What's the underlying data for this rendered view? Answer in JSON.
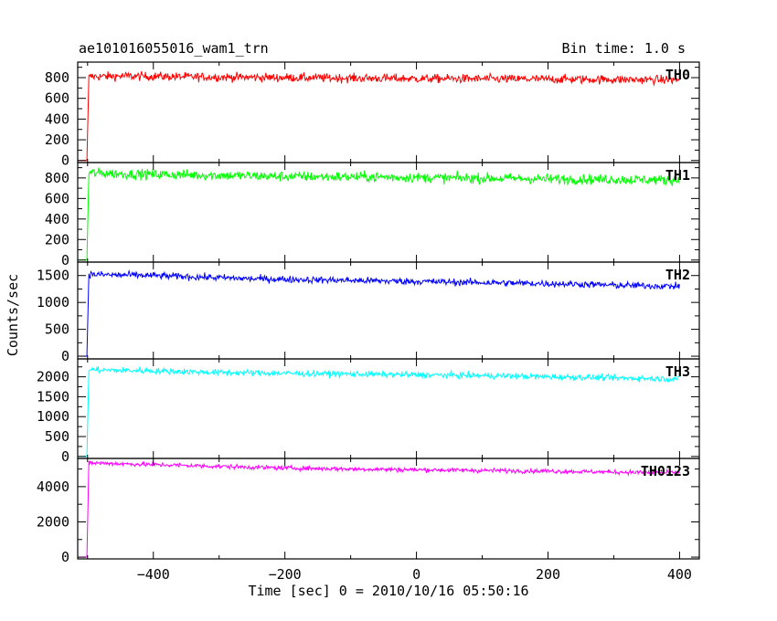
{
  "header": {
    "title": "ae101016055016_wam1_trn",
    "bin_time": "Bin time: 1.0 s"
  },
  "chart_data": {
    "type": "line",
    "title": "ae101016055016_wam1_trn",
    "subtitle": "Bin time: 1.0 s",
    "xlabel": "Time [sec] 0 = 2010/10/16 05:50:16",
    "ylabel": "Counts/sec",
    "xlim": [
      -515,
      430
    ],
    "xticks": [
      -400,
      -200,
      0,
      200,
      400
    ],
    "grid": false,
    "panels": [
      {
        "name": "TH0",
        "color": "#ff0000",
        "ylim": [
          -20,
          950
        ],
        "yticks": [
          0,
          200,
          400,
          600,
          800
        ],
        "x": [
          -515,
          -501,
          -498,
          -495,
          -450,
          -400,
          -350,
          -300,
          -250,
          -200,
          -150,
          -100,
          -50,
          0,
          50,
          100,
          150,
          200,
          250,
          300,
          350,
          400
        ],
        "y": [
          0,
          0,
          800,
          810,
          815,
          812,
          808,
          805,
          803,
          800,
          798,
          795,
          793,
          790,
          790,
          788,
          787,
          785,
          784,
          782,
          780,
          778
        ],
        "noise": 30
      },
      {
        "name": "TH1",
        "color": "#00ff00",
        "ylim": [
          -20,
          950
        ],
        "yticks": [
          0,
          200,
          400,
          600,
          800
        ],
        "x": [
          -515,
          -501,
          -498,
          -495,
          -450,
          -400,
          -350,
          -300,
          -250,
          -200,
          -150,
          -100,
          -50,
          0,
          50,
          100,
          150,
          200,
          250,
          300,
          350,
          400
        ],
        "y": [
          0,
          0,
          850,
          850,
          840,
          835,
          830,
          825,
          820,
          815,
          812,
          810,
          808,
          805,
          800,
          798,
          795,
          790,
          787,
          785,
          782,
          780
        ],
        "noise": 35
      },
      {
        "name": "TH2",
        "color": "#0000ff",
        "ylim": [
          -50,
          1750
        ],
        "yticks": [
          0,
          500,
          1000,
          1500
        ],
        "x": [
          -515,
          -501,
          -498,
          -495,
          -450,
          -400,
          -350,
          -300,
          -250,
          -200,
          -150,
          -100,
          -50,
          0,
          50,
          100,
          150,
          200,
          250,
          300,
          350,
          400
        ],
        "y": [
          0,
          0,
          1520,
          1520,
          1510,
          1500,
          1480,
          1460,
          1440,
          1430,
          1420,
          1410,
          1400,
          1390,
          1380,
          1370,
          1360,
          1350,
          1340,
          1320,
          1310,
          1300
        ],
        "noise": 45
      },
      {
        "name": "TH3",
        "color": "#00ffff",
        "ylim": [
          -50,
          2450
        ],
        "yticks": [
          0,
          500,
          1000,
          1500,
          2000
        ],
        "x": [
          -515,
          -501,
          -498,
          -495,
          -450,
          -400,
          -350,
          -300,
          -250,
          -200,
          -150,
          -100,
          -50,
          0,
          50,
          100,
          150,
          200,
          250,
          300,
          350,
          400
        ],
        "y": [
          0,
          0,
          2180,
          2180,
          2160,
          2150,
          2130,
          2110,
          2100,
          2090,
          2080,
          2070,
          2060,
          2050,
          2040,
          2030,
          2020,
          2000,
          1990,
          1970,
          1960,
          1950
        ],
        "noise": 55
      },
      {
        "name": "TH0123",
        "color": "#ff00ff",
        "ylim": [
          -100,
          5600
        ],
        "yticks": [
          0,
          2000,
          4000
        ],
        "x": [
          -515,
          -501,
          -498,
          -495,
          -450,
          -400,
          -350,
          -300,
          -250,
          -200,
          -150,
          -100,
          -50,
          0,
          50,
          100,
          150,
          200,
          250,
          300,
          350,
          400
        ],
        "y": [
          0,
          0,
          5350,
          5350,
          5300,
          5250,
          5200,
          5150,
          5100,
          5060,
          5030,
          5000,
          4980,
          4960,
          4940,
          4920,
          4900,
          4880,
          4850,
          4830,
          4800,
          4780
        ],
        "noise": 90
      }
    ]
  }
}
